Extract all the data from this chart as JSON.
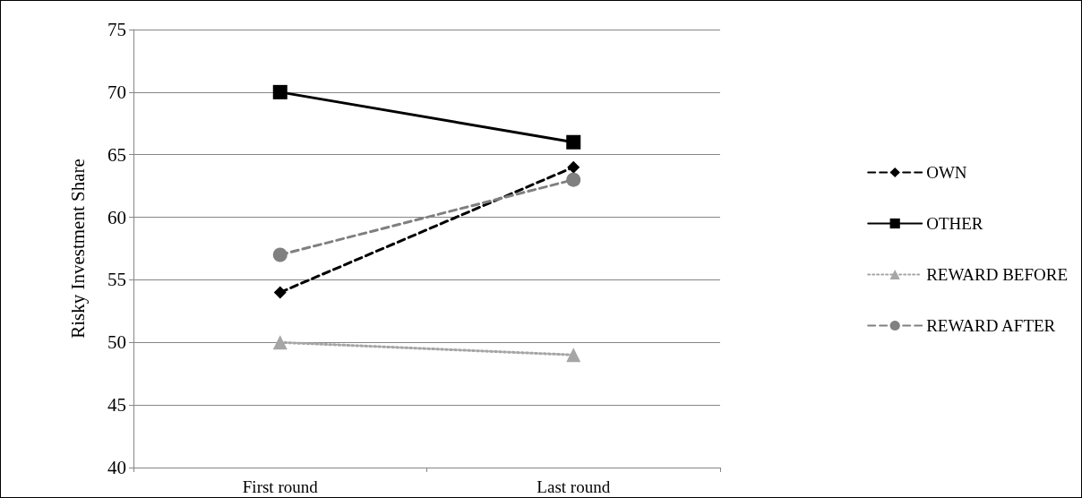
{
  "chart_data": {
    "type": "line",
    "ylabel": "Risky Investment Share",
    "categories": [
      "First round",
      "Last round"
    ],
    "series": [
      {
        "name": "OWN",
        "color": "#000000",
        "values": [
          54,
          64
        ],
        "marker": "diamond",
        "line_style": "dashed"
      },
      {
        "name": "OTHER",
        "color": "#000000",
        "values": [
          70,
          66
        ],
        "marker": "square",
        "line_style": "solid"
      },
      {
        "name": "REWARD BEFORE",
        "color": "#a6a6a6",
        "values": [
          50,
          49
        ],
        "marker": "triangle",
        "line_style": "dotted"
      },
      {
        "name": "REWARD AFTER",
        "color": "#808080",
        "values": [
          57,
          63
        ],
        "marker": "circle",
        "line_style": "dashed"
      }
    ],
    "ylim": [
      40,
      75
    ],
    "yticks": [
      40,
      45,
      50,
      55,
      60,
      65,
      70,
      75
    ],
    "grid": "y",
    "legend": "right"
  }
}
